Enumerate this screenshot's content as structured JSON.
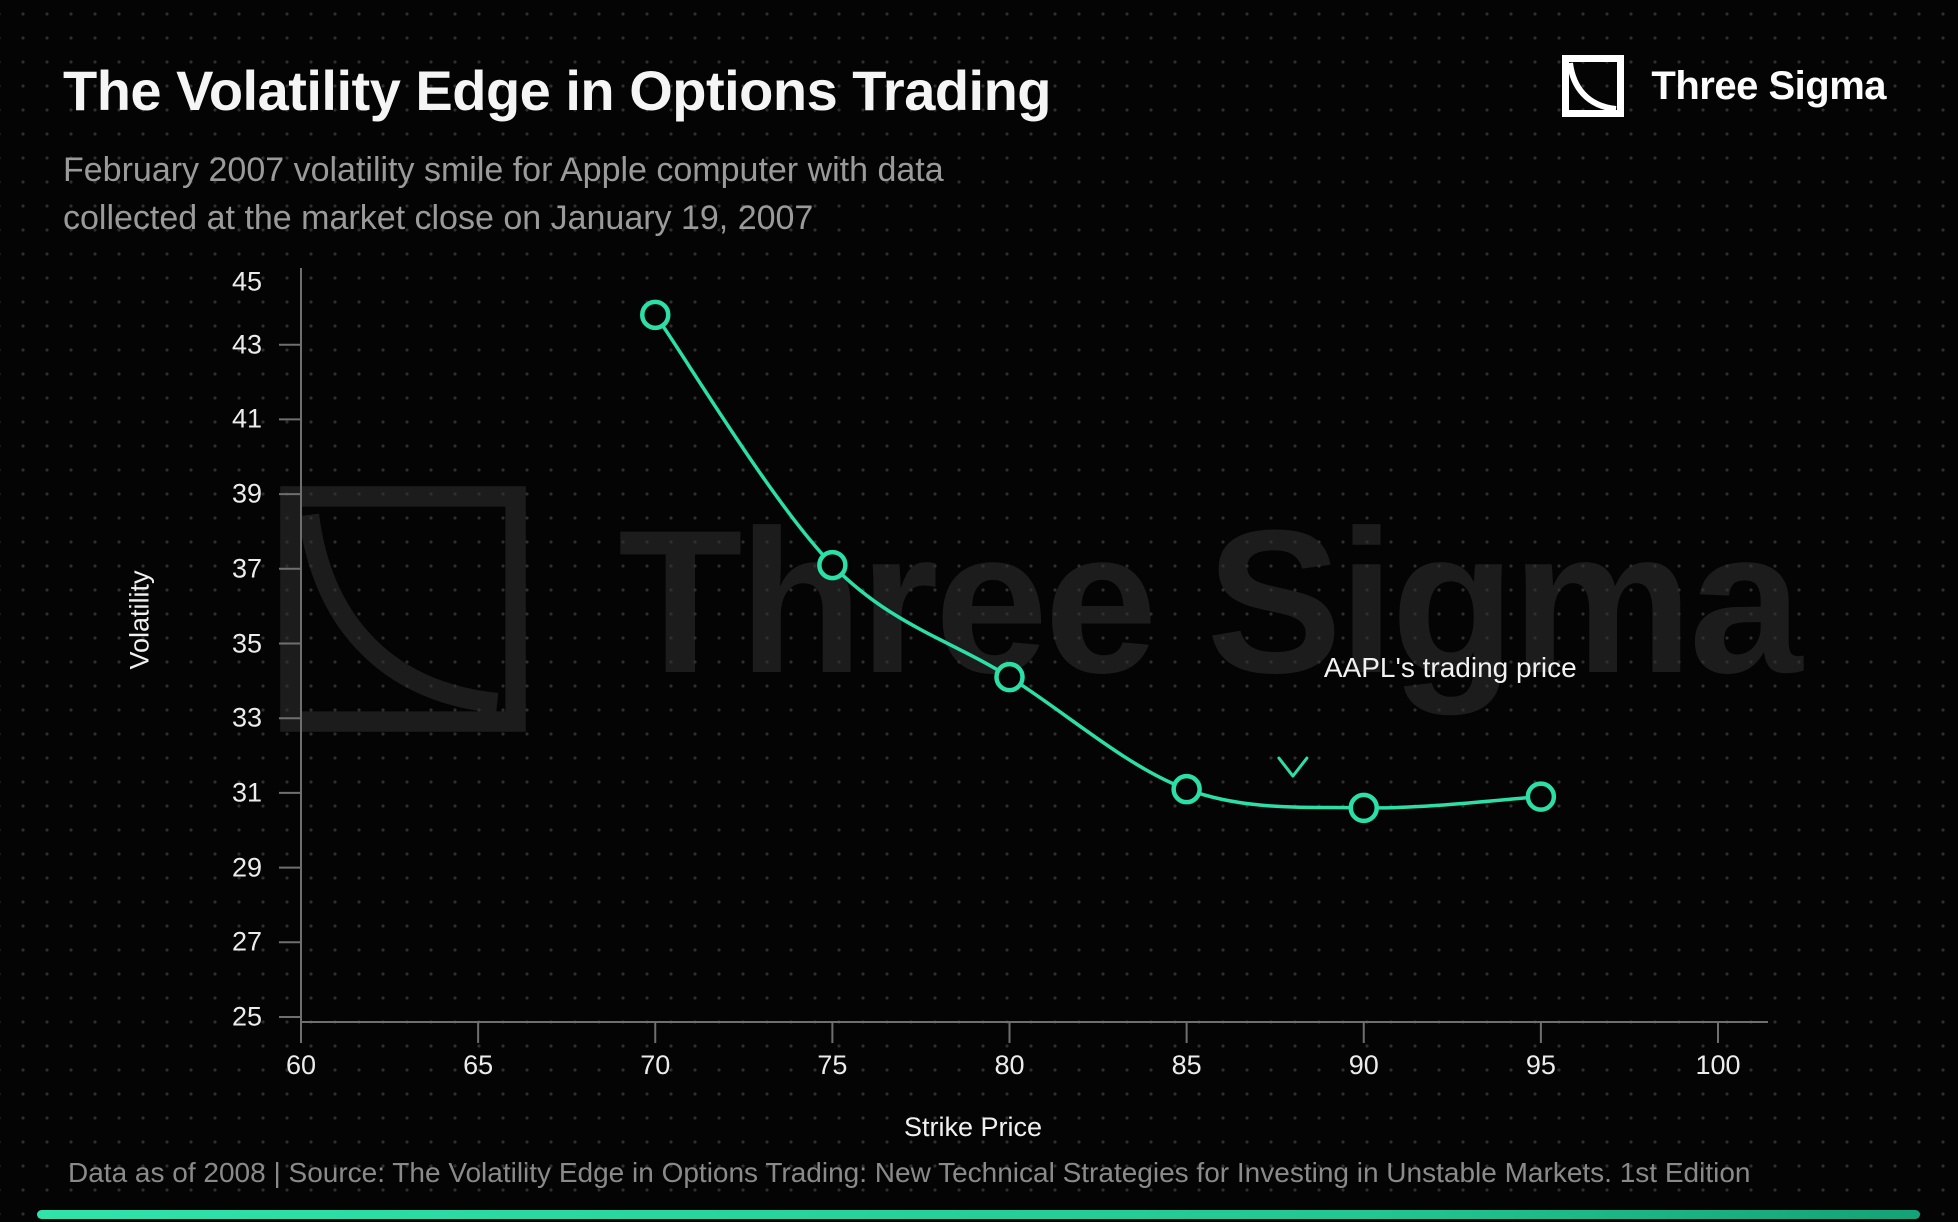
{
  "header": {
    "title": "The Volatility Edge in Options Trading",
    "subtitle_line1": "February 2007 volatility smile for Apple computer with data",
    "subtitle_line2": "collected at the market close on January 19, 2007"
  },
  "brand": {
    "name": "Three Sigma"
  },
  "watermark": {
    "text": "Three Sigma"
  },
  "chart_data": {
    "type": "line",
    "title": "February 2007 volatility smile for Apple computer",
    "xlabel": "Strike Price",
    "ylabel": "Volatility",
    "x": [
      70,
      75,
      80,
      85,
      90,
      95
    ],
    "y": [
      43.8,
      37.1,
      34.1,
      31.1,
      30.6,
      30.9
    ],
    "xlim": [
      60,
      100
    ],
    "ylim": [
      25,
      45
    ],
    "x_ticks": [
      60,
      65,
      70,
      75,
      80,
      85,
      90,
      95,
      100
    ],
    "y_ticks": [
      25,
      27,
      29,
      31,
      33,
      35,
      37,
      39,
      41,
      43,
      45
    ],
    "legend": "none",
    "grid": "dotted-background",
    "line_color": "#2BDFA7",
    "marker": "open-circle",
    "annotation": {
      "text": "AAPL's trading price",
      "x": 88,
      "arrow_from_y": 36.5,
      "arrow_to_y": 31.45
    }
  },
  "footer": {
    "source": "Data as of 2008 | Source: The Volatility Edge in Options Trading: New Technical Strategies for Investing in Unstable Markets. 1st Edition"
  },
  "colors": {
    "background": "#040404",
    "accent": "#2BDFA7",
    "title_text": "#F5F5F5",
    "muted_text": "#9A9A9A",
    "axis": "#6F6F6F",
    "tick_text": "#ECECEC",
    "watermark": "#1C1C1C"
  }
}
